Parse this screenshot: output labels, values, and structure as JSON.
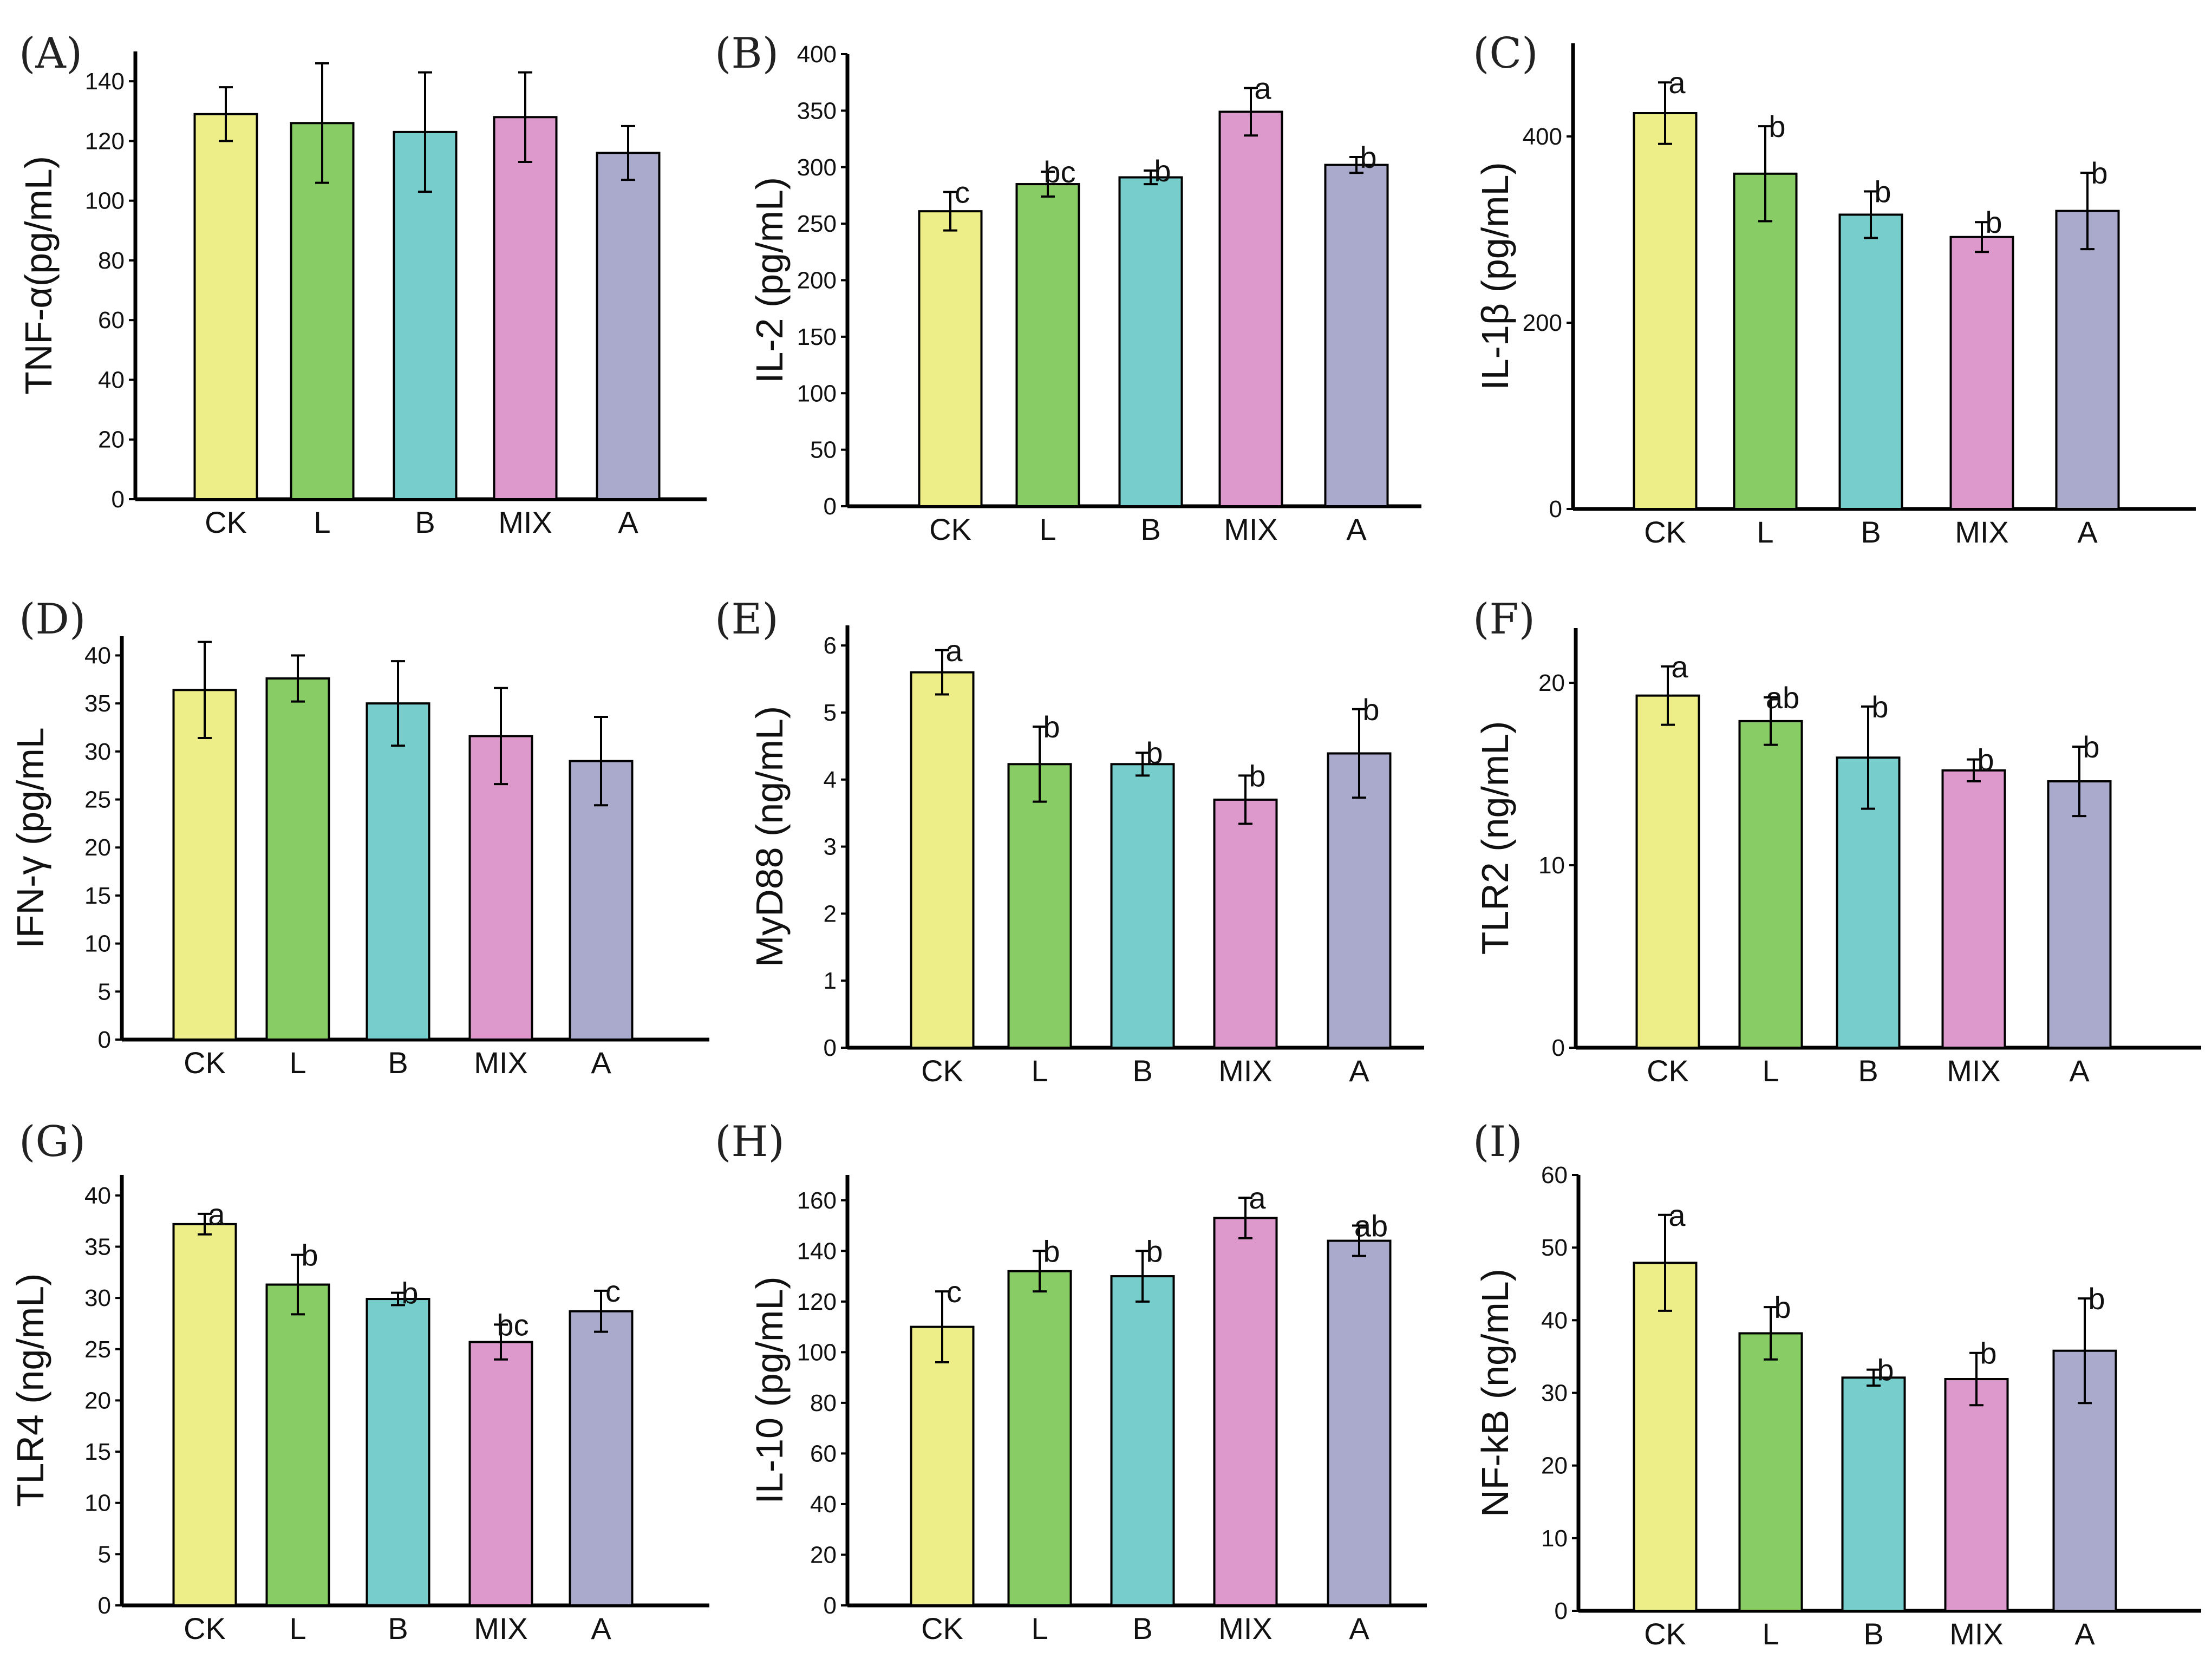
{
  "figure": {
    "categories": [
      "CK",
      "L",
      "B",
      "MIX",
      "A"
    ],
    "colors": {
      "CK": "#eeee88",
      "L": "#88cc66",
      "B": "#77cccc",
      "MIX": "#dd99cc",
      "A": "#aaaacc"
    }
  },
  "chart_data": [
    {
      "type": "bar",
      "panel": "(A)",
      "title": "",
      "xlabel": "",
      "ylabel": "TNF-α(pg/mL)",
      "categories": [
        "CK",
        "L",
        "B",
        "MIX",
        "A"
      ],
      "values": [
        129,
        126,
        123,
        128,
        116
      ],
      "errors": [
        9,
        20,
        20,
        15,
        9
      ],
      "sig": [
        "",
        "",
        "",
        "",
        ""
      ],
      "ylim": [
        0,
        150
      ],
      "yticks": [
        0,
        20,
        40,
        60,
        80,
        100,
        120,
        140
      ]
    },
    {
      "type": "bar",
      "panel": "(B)",
      "title": "",
      "xlabel": "",
      "ylabel": "IL-2 (pg/mL)",
      "categories": [
        "CK",
        "L",
        "B",
        "MIX",
        "A"
      ],
      "values": [
        261,
        285,
        291,
        349,
        302
      ],
      "errors": [
        17,
        11,
        6,
        21,
        7
      ],
      "sig": [
        "c",
        "bc",
        "b",
        "a",
        "b"
      ],
      "ylim": [
        0,
        400
      ],
      "yticks": [
        0,
        50,
        100,
        150,
        200,
        250,
        300,
        350,
        400
      ]
    },
    {
      "type": "bar",
      "panel": "(C)",
      "title": "",
      "xlabel": "",
      "ylabel": "IL-1β (pg/mL)",
      "categories": [
        "CK",
        "L",
        "B",
        "MIX",
        "A"
      ],
      "values": [
        425,
        360,
        316,
        292,
        320
      ],
      "errors": [
        33,
        51,
        25,
        16,
        41
      ],
      "sig": [
        "a",
        "b",
        "b",
        "b",
        "b"
      ],
      "ylim": [
        0,
        500
      ],
      "yticks": [
        0,
        200,
        400
      ]
    },
    {
      "type": "bar",
      "panel": "(D)",
      "title": "",
      "xlabel": "",
      "ylabel": "IFN-γ (pg/mL",
      "categories": [
        "CK",
        "L",
        "B",
        "MIX",
        "A"
      ],
      "values": [
        36.4,
        37.6,
        35,
        31.6,
        29
      ],
      "errors": [
        5,
        2.4,
        4.4,
        5,
        4.6
      ],
      "sig": [
        "",
        "",
        "",
        "",
        ""
      ],
      "ylim": [
        0,
        42
      ],
      "yticks": [
        0,
        5,
        10,
        15,
        20,
        25,
        30,
        35,
        40
      ]
    },
    {
      "type": "bar",
      "panel": "(E)",
      "title": "",
      "xlabel": "",
      "ylabel": "MyD88 (ng/mL)",
      "categories": [
        "CK",
        "L",
        "B",
        "MIX",
        "A"
      ],
      "values": [
        5.6,
        4.23,
        4.23,
        3.7,
        4.39
      ],
      "errors": [
        0.33,
        0.56,
        0.17,
        0.36,
        0.66
      ],
      "sig": [
        "a",
        "b",
        "b",
        "b",
        "b"
      ],
      "ylim": [
        0,
        6.3
      ],
      "yticks": [
        0,
        1,
        2,
        3,
        4,
        5,
        6
      ]
    },
    {
      "type": "bar",
      "panel": "(F)",
      "title": "",
      "xlabel": "",
      "ylabel": "TLR2 (ng/mL)",
      "categories": [
        "CK",
        "L",
        "B",
        "MIX",
        "A"
      ],
      "values": [
        19.3,
        17.9,
        15.9,
        15.2,
        14.6
      ],
      "errors": [
        1.6,
        1.3,
        2.8,
        0.6,
        1.9
      ],
      "sig": [
        "a",
        "ab",
        "b",
        "b",
        "b"
      ],
      "ylim": [
        0,
        23
      ],
      "yticks": [
        0,
        10,
        20
      ]
    },
    {
      "type": "bar",
      "panel": "(G)",
      "title": "",
      "xlabel": "",
      "ylabel": "TLR4 (ng/mL)",
      "categories": [
        "CK",
        "L",
        "B",
        "MIX",
        "A"
      ],
      "values": [
        37.2,
        31.3,
        29.9,
        25.7,
        28.7
      ],
      "errors": [
        1,
        2.9,
        0.6,
        1.7,
        2
      ],
      "sig": [
        "a",
        "b",
        "b",
        "bc",
        "c"
      ],
      "ylim": [
        0,
        42
      ],
      "yticks": [
        0,
        5,
        10,
        15,
        20,
        25,
        30,
        35,
        40
      ]
    },
    {
      "type": "bar",
      "panel": "(H)",
      "title": "",
      "xlabel": "",
      "ylabel": "IL-10 (pg/mL)",
      "categories": [
        "CK",
        "L",
        "B",
        "MIX",
        "A"
      ],
      "values": [
        110,
        132,
        130,
        153,
        144
      ],
      "errors": [
        14,
        8,
        10,
        8,
        6
      ],
      "sig": [
        "c",
        "b",
        "b",
        "a",
        "ab"
      ],
      "ylim": [
        0,
        170
      ],
      "yticks": [
        0,
        20,
        40,
        60,
        80,
        100,
        120,
        140,
        160
      ]
    },
    {
      "type": "bar",
      "panel": "(I)",
      "title": "",
      "xlabel": "",
      "ylabel": "NF-kB (ng/mL)",
      "categories": [
        "CK",
        "L",
        "B",
        "MIX",
        "A"
      ],
      "values": [
        47.9,
        38.2,
        32.1,
        31.9,
        35.8
      ],
      "errors": [
        6.6,
        3.6,
        1.1,
        3.6,
        7.2
      ],
      "sig": [
        "a",
        "b",
        "b",
        "b",
        "b"
      ],
      "ylim": [
        0,
        60
      ],
      "yticks": [
        0,
        10,
        20,
        30,
        40,
        50,
        60
      ]
    }
  ]
}
